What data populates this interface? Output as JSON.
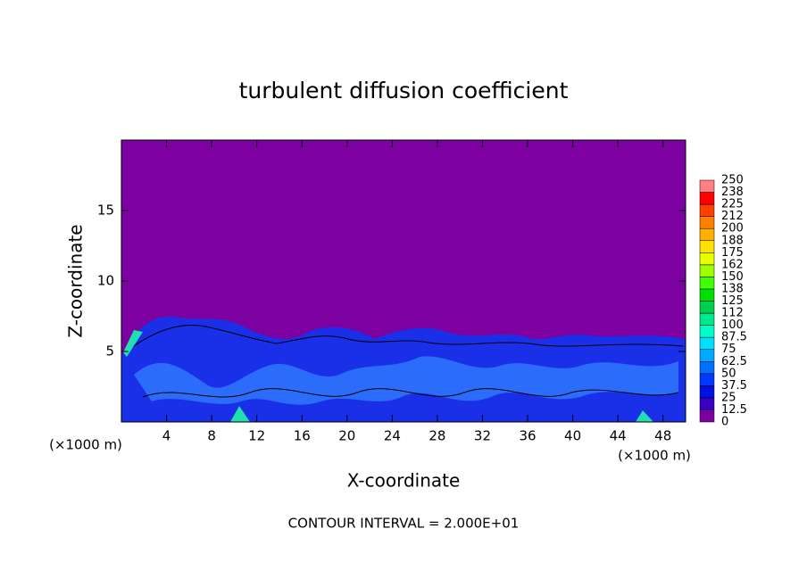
{
  "chart_data": {
    "type": "contour",
    "title": "turbulent diffusion coefficient",
    "x_label": "X-coordinate",
    "y_label": "Z-coordinate",
    "x_unit": "(×1000 m)",
    "footer": "CONTOUR INTERVAL = 2.000E+01",
    "xlim": [
      0,
      50
    ],
    "ylim": [
      0,
      20
    ],
    "xticks": [
      4,
      8,
      12,
      16,
      20,
      24,
      28,
      32,
      36,
      40,
      44,
      48
    ],
    "yticks": [
      5,
      10,
      15
    ],
    "background_color": "#7d00a0",
    "colorbar": {
      "levels": [
        0,
        12.5,
        25,
        37.5,
        50,
        62.5,
        75,
        87.5,
        100,
        112,
        125,
        138,
        150,
        162,
        175,
        188,
        200,
        212,
        225,
        238,
        250
      ],
      "colors": [
        "#7d00a0",
        "#3a00c8",
        "#0010e0",
        "#0038ff",
        "#0070ff",
        "#00a8ff",
        "#00e0ff",
        "#00ffc8",
        "#00e890",
        "#00d050",
        "#00e000",
        "#40ff00",
        "#a0ff00",
        "#e8ff00",
        "#ffe000",
        "#ffb000",
        "#ff8000",
        "#ff4000",
        "#ff0000",
        "#ff8080"
      ]
    }
  }
}
